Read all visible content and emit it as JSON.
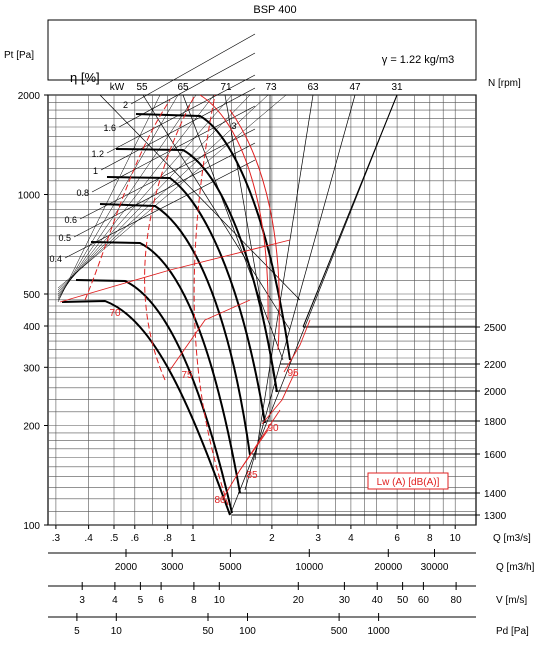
{
  "chart_data": {
    "type": "line",
    "title": "BSP 400",
    "density_label": "γ = 1.22 kg/m3",
    "y_axis": {
      "label": "Pt [Pa]",
      "scale": "log",
      "ylim": [
        100,
        2000
      ],
      "ticks": [
        100,
        200,
        300,
        400,
        500,
        1000,
        2000
      ],
      "tick_labels": [
        "100",
        "200",
        "300",
        "400",
        "500",
        "1000",
        "2000"
      ]
    },
    "x_axis": {
      "label": "Q [m3/s]",
      "scale": "log",
      "xlim": [
        0.28,
        12
      ],
      "ticks": [
        0.3,
        0.4,
        0.5,
        0.6,
        0.8,
        1,
        2,
        3,
        4,
        6,
        8,
        10
      ],
      "tick_labels": [
        ".3",
        ".4",
        ".5",
        ".6",
        ".8",
        "1",
        "2",
        "3",
        "4",
        "6",
        "8",
        "10"
      ]
    },
    "secondary_scales": [
      {
        "label": "Q [m3/h]",
        "major_ticks": [
          2000,
          3000,
          5000,
          10000,
          20000,
          30000
        ],
        "major_labels": [
          "2000",
          "3000",
          "5000",
          "10000",
          "20000",
          "30000"
        ]
      },
      {
        "label": "V [m/s]",
        "major_ticks": [
          3,
          4,
          5,
          6,
          8,
          10,
          20,
          30,
          40,
          50,
          60,
          80
        ],
        "major_labels": [
          "3",
          "4",
          "5",
          "6",
          "8",
          "10",
          "20",
          "30",
          "40",
          "50",
          "60",
          "80"
        ]
      },
      {
        "label": "Pd [Pa]",
        "major_ticks": [
          5,
          10,
          50,
          100,
          500,
          1000
        ],
        "major_labels": [
          "5",
          "10",
          "50",
          "100",
          "500",
          "1000"
        ]
      }
    ],
    "efficiency": {
      "label": "η [%]",
      "kw_label": "kW",
      "top_values": [
        55,
        65,
        71,
        73,
        63,
        47,
        31
      ],
      "isolines_pct": [
        70,
        75,
        80
      ]
    },
    "power_kw": [
      "2",
      "1.6",
      "1.2",
      "1",
      "0.8",
      "0.6",
      "0.5",
      "0.4"
    ],
    "speed": {
      "label": "N [rpm]",
      "values": [
        2500,
        2200,
        2000,
        1800,
        1600,
        1400,
        1300
      ],
      "tick_labels": [
        "2500",
        "2200",
        "2000",
        "1800",
        "1600",
        "1400",
        "1300"
      ]
    },
    "sound": {
      "label": "Lw (A)  [dB(A)]",
      "values": [
        70,
        75,
        80,
        85,
        90,
        95
      ],
      "labels": [
        "70",
        "75",
        "80",
        "85",
        "90",
        "95"
      ],
      "color": "#e02020"
    },
    "series": [
      {
        "rpm": 2500,
        "x": [
          0.79,
          1.4,
          1.9,
          2.25,
          2.45
        ],
        "y": [
          1770,
          1760,
          1200,
          700,
          330
        ]
      },
      {
        "rpm": 2200,
        "x": [
          0.69,
          1.25,
          1.65,
          1.95,
          2.15
        ],
        "y": [
          1370,
          1360,
          930,
          540,
          255
        ]
      },
      {
        "rpm": 2000,
        "x": [
          0.63,
          1.13,
          1.5,
          1.77,
          1.95
        ],
        "y": [
          1130,
          1120,
          770,
          450,
          211
        ]
      },
      {
        "rpm": 1800,
        "x": [
          0.57,
          1.02,
          1.35,
          1.6,
          1.76
        ],
        "y": [
          920,
          910,
          620,
          360,
          171
        ]
      },
      {
        "rpm": 1600,
        "x": [
          0.5,
          0.9,
          1.2,
          1.42,
          1.56
        ],
        "y": [
          725,
          720,
          490,
          285,
          135
        ]
      },
      {
        "rpm": 1400,
        "x": [
          0.44,
          0.79,
          1.05,
          1.24,
          1.37
        ],
        "y": [
          555,
          550,
          375,
          218,
          103
        ]
      },
      {
        "rpm": 1300,
        "x": [
          0.41,
          0.73,
          0.97,
          1.15,
          1.27
        ],
        "y": [
          478,
          475,
          325,
          188,
          100
        ]
      }
    ],
    "grid": true,
    "line_color": "#000000",
    "accent_color": "#e02020"
  }
}
